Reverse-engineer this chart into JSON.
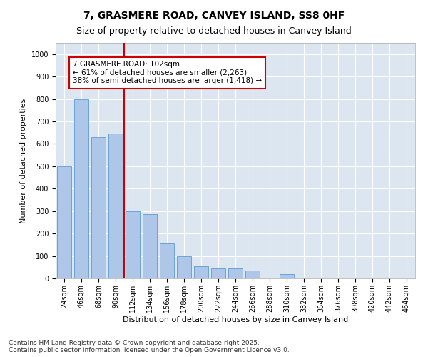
{
  "title": "7, GRASMERE ROAD, CANVEY ISLAND, SS8 0HF",
  "subtitle": "Size of property relative to detached houses in Canvey Island",
  "xlabel": "Distribution of detached houses by size in Canvey Island",
  "ylabel": "Number of detached properties",
  "categories": [
    "24sqm",
    "46sqm",
    "68sqm",
    "90sqm",
    "112sqm",
    "134sqm",
    "156sqm",
    "178sqm",
    "200sqm",
    "222sqm",
    "244sqm",
    "266sqm",
    "288sqm",
    "310sqm",
    "332sqm",
    "354sqm",
    "376sqm",
    "398sqm",
    "420sqm",
    "442sqm",
    "464sqm"
  ],
  "values": [
    500,
    800,
    630,
    645,
    300,
    285,
    155,
    100,
    55,
    45,
    45,
    35,
    0,
    20,
    0,
    0,
    0,
    0,
    0,
    0,
    0
  ],
  "bar_color": "#aec6e8",
  "bar_edge_color": "#5b9bd5",
  "vline_x": 3.5,
  "vline_color": "#cc0000",
  "annotation_text": "7 GRASMERE ROAD: 102sqm\n← 61% of detached houses are smaller (2,263)\n38% of semi-detached houses are larger (1,418) →",
  "annotation_box_color": "#cc0000",
  "ylim": [
    0,
    1050
  ],
  "yticks": [
    0,
    100,
    200,
    300,
    400,
    500,
    600,
    700,
    800,
    900,
    1000
  ],
  "plot_bg_color": "#dce6f1",
  "footer": "Contains HM Land Registry data © Crown copyright and database right 2025.\nContains public sector information licensed under the Open Government Licence v3.0.",
  "title_fontsize": 10,
  "subtitle_fontsize": 9,
  "axis_label_fontsize": 8,
  "tick_fontsize": 7,
  "annotation_fontsize": 7.5,
  "footer_fontsize": 6.5
}
